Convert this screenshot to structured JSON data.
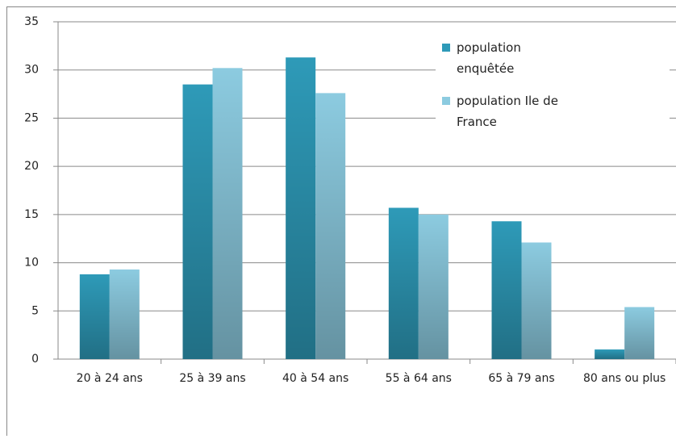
{
  "chart_data": {
    "type": "bar",
    "categories": [
      "20 à 24 ans",
      "25 à 39 ans",
      "40 à 54 ans",
      "55 à 64 ans",
      "65 à 79 ans",
      "80 ans ou plus"
    ],
    "series": [
      {
        "name": "population enquêtée",
        "color": "#2e9ab8",
        "values": [
          8.8,
          28.5,
          31.3,
          15.7,
          14.3,
          1.0
        ]
      },
      {
        "name": "population Ile de France",
        "color": "#8ccbe0",
        "values": [
          9.3,
          30.2,
          27.6,
          15.0,
          12.1,
          5.4
        ]
      }
    ],
    "ylim": [
      0,
      35
    ],
    "yticks": [
      0,
      5,
      10,
      15,
      20,
      25,
      30,
      35
    ],
    "grid": true,
    "legend": "top-right"
  }
}
